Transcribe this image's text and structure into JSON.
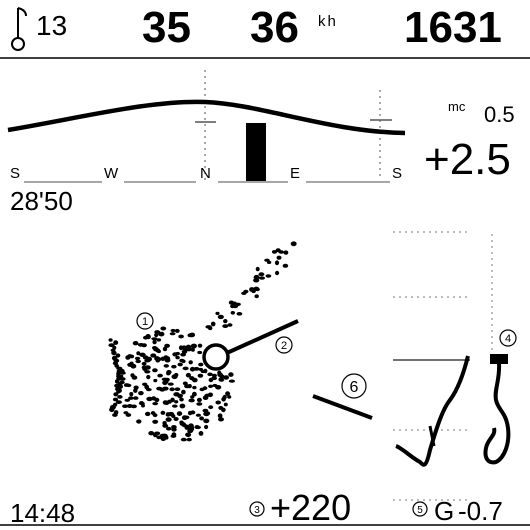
{
  "status_bar": {
    "satellites": "13",
    "altitude_small": "35",
    "speed": "36",
    "speed_unit": "kh",
    "altitude": "1631"
  },
  "compass": {
    "labels": [
      "S",
      "W",
      "N",
      "E",
      "S"
    ],
    "mc_label": "mc",
    "mc_value": "0.5",
    "vario_avg": "+2.5",
    "flight_time": "28'50"
  },
  "thermal": {
    "marker_1": "1",
    "marker_2": "2",
    "marker_3": "3",
    "marker_4": "4",
    "marker_5": "5",
    "marker_6": "6"
  },
  "footer": {
    "clock": "14:48",
    "altitude_gain": "+220",
    "g_label": "G",
    "g_value": "-0.7"
  },
  "colors": {
    "foreground": "#000000",
    "background": "#ffffff",
    "grid": "#666666"
  }
}
